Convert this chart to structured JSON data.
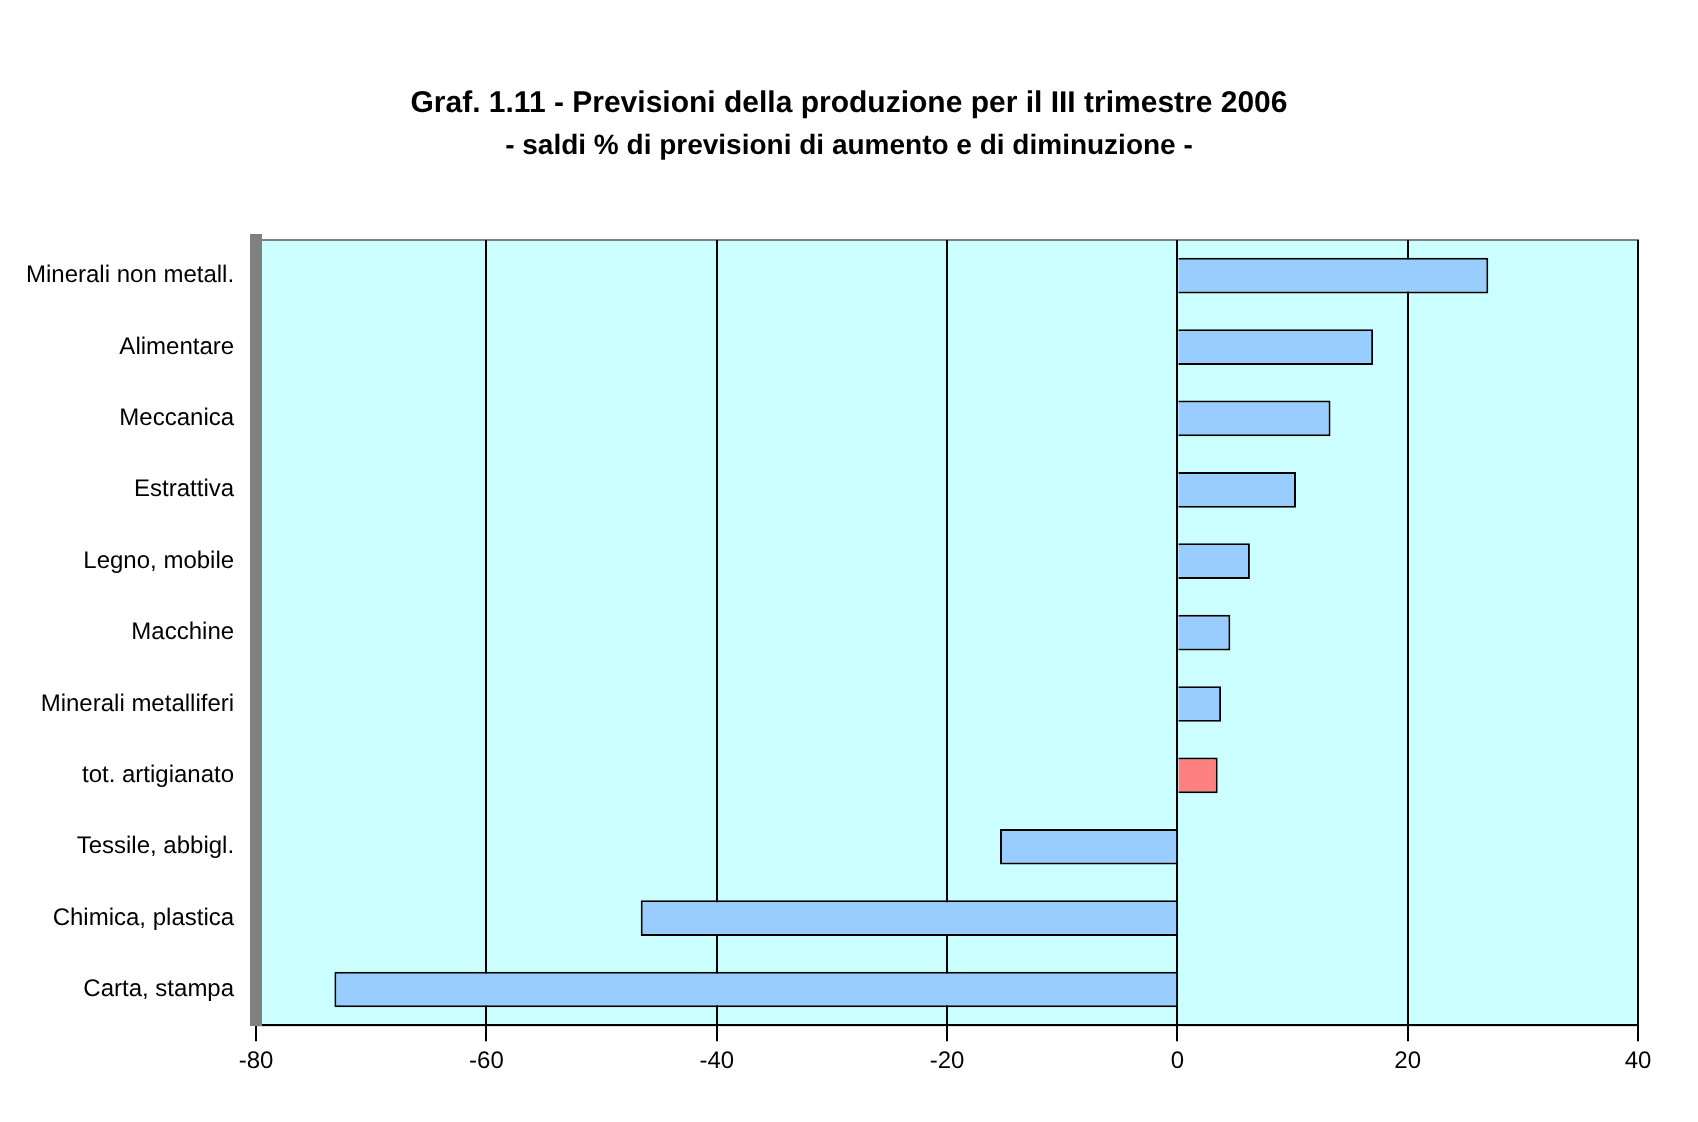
{
  "chart_data": {
    "type": "bar",
    "orientation": "horizontal",
    "title": "Graf. 1.11 - Previsioni della produzione per il III trimestre 2006",
    "subtitle": "- saldi % di previsioni di aumento e di diminuzione -",
    "categories": [
      "Minerali non metall.",
      "Alimentare",
      "Meccanica",
      "Estrattiva",
      "Legno, mobile",
      "Macchine",
      "Minerali metalliferi",
      "tot. artigianato",
      "Tessile, abbigl.",
      "Chimica, plastica",
      "Carta, stampa"
    ],
    "values": [
      27,
      17,
      13.3,
      10.3,
      6.3,
      4.6,
      3.8,
      3.5,
      -15.4,
      -46.6,
      -73.2
    ],
    "colors": [
      "#99ccff",
      "#99ccff",
      "#99ccff",
      "#99ccff",
      "#99ccff",
      "#99ccff",
      "#99ccff",
      "#ff8080",
      "#99ccff",
      "#99ccff",
      "#99ccff"
    ],
    "xlim": [
      -80,
      40
    ],
    "xticks": [
      -80,
      -60,
      -40,
      -20,
      0,
      20,
      40
    ],
    "grid": "x",
    "legend": false
  }
}
